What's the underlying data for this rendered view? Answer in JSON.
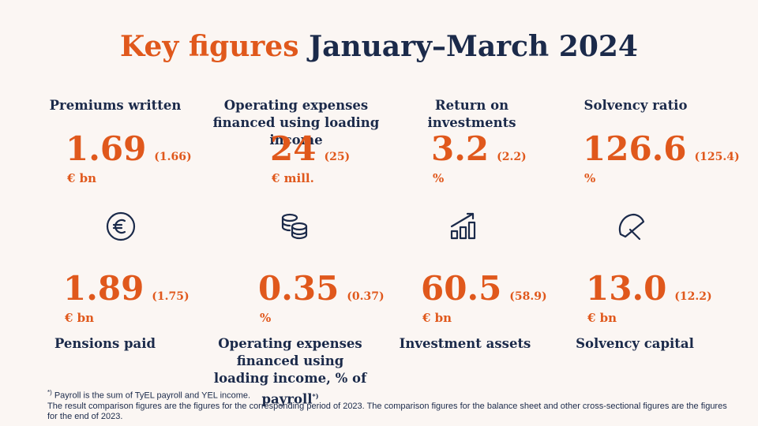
{
  "title": {
    "highlight": "Key figures",
    "rest": "January–March 2024"
  },
  "top_metrics": [
    {
      "label": "Premiums written",
      "value": "1.69",
      "comparison": "(1.66)",
      "unit": "€ bn"
    },
    {
      "label": "Operating expenses financed using loading income",
      "value": "24",
      "comparison": "(25)",
      "unit": "€ mill."
    },
    {
      "label": "Return on investments",
      "value": "3.2",
      "comparison": "(2.2)",
      "unit": "%"
    },
    {
      "label": "Solvency ratio",
      "value": "126.6",
      "comparison": "(125.4)",
      "unit": "%"
    }
  ],
  "bottom_metrics": [
    {
      "label": "Pensions paid",
      "value": "1.89",
      "comparison": "(1.75)",
      "unit": "€ bn"
    },
    {
      "label": "Operating expenses financed using loading income, % of payroll",
      "label_note": "*)",
      "value": "0.35",
      "comparison": "(0.37)",
      "unit": "%"
    },
    {
      "label": "Investment assets",
      "value": "60.5",
      "comparison": "(58.9)",
      "unit": "€ bn"
    },
    {
      "label": "Solvency capital",
      "value": "13.0",
      "comparison": "(12.2)",
      "unit": "€ bn"
    }
  ],
  "footnote": {
    "marker": "*)",
    "note": "Payroll is the sum of TyEL payroll and YEL income.",
    "text": "The result comparison figures are the figures for the corresponding period of 2023. The comparison figures for the balance sheet and other cross-sectional figures are the figures for the end of 2023."
  }
}
